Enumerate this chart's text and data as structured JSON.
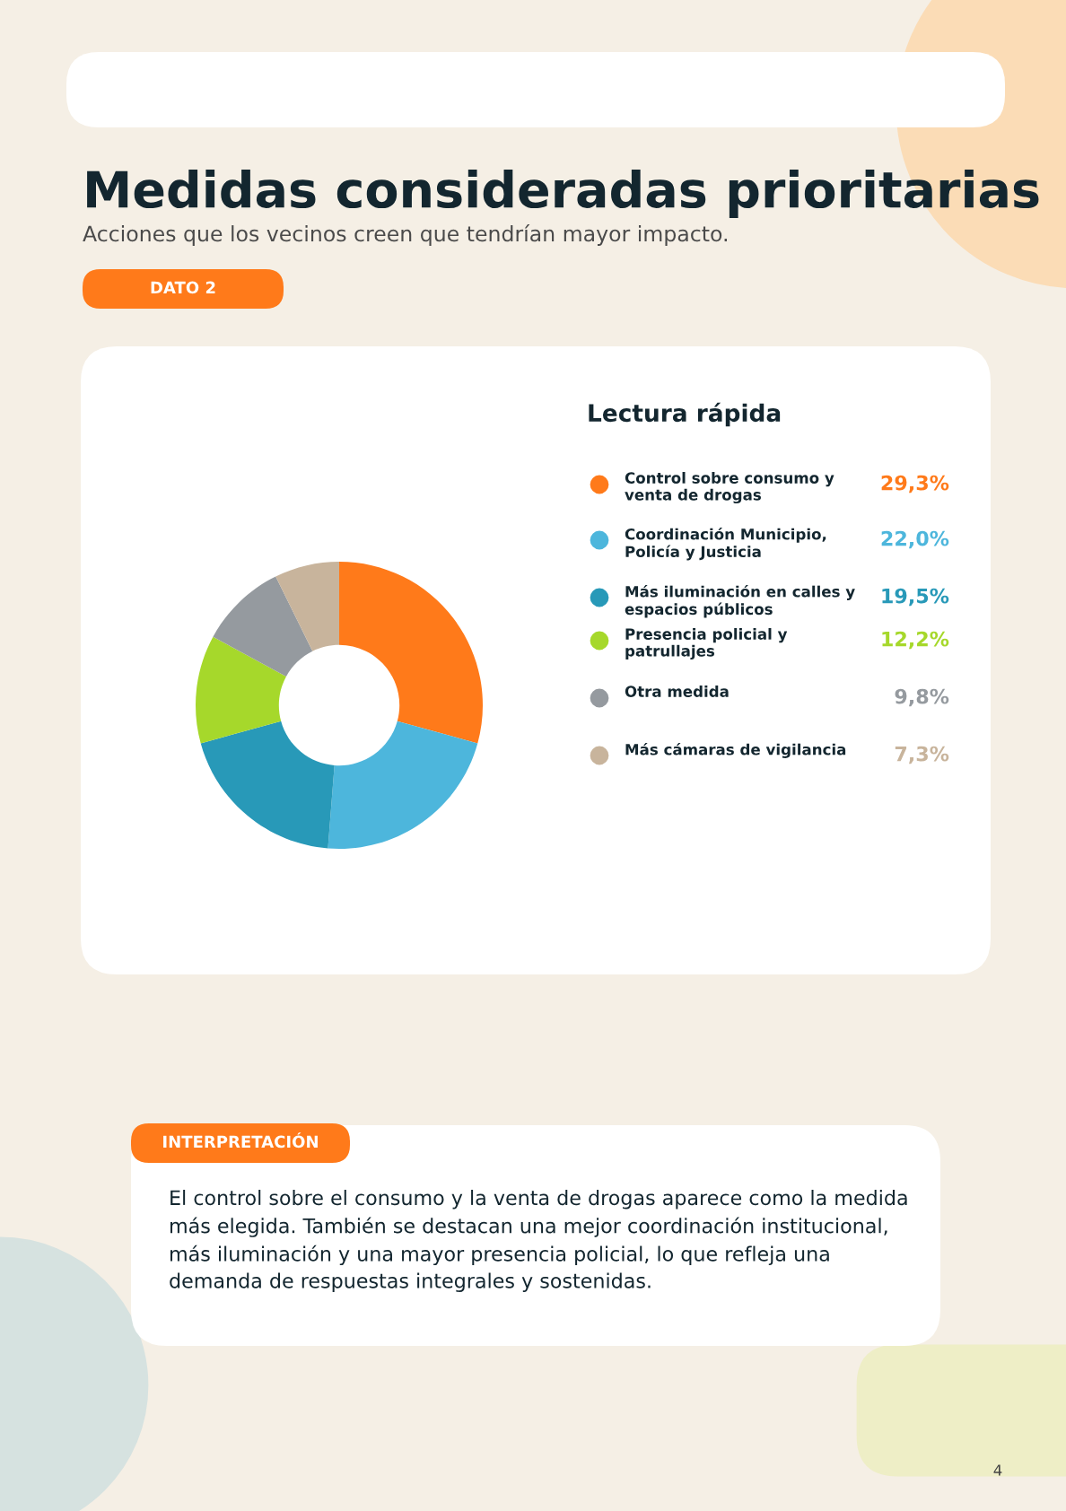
{
  "chart_data": {
    "type": "donut",
    "title": "Medidas consideradas prioritarias",
    "subtitle": "Acciones que los vecinos creen que tendrían mayor impacto.",
    "legend_title": "Lectura rápida",
    "legend": "right",
    "categories": [
      "Control sobre consumo y venta de drogas",
      "Coordinación Municipio, Policía y Justicia",
      "Más iluminación en calles y espacios públicos",
      "Presencia policial y patrullajes",
      "Otra medida",
      "Más cámaras de vigilancia"
    ],
    "values": [
      29.3,
      22.0,
      19.5,
      12.2,
      9.8,
      7.3
    ],
    "colors": [
      "#ff7a1a",
      "#4db6dc",
      "#2899b8",
      "#a6d82b",
      "#959a9f",
      "#c8b49c"
    ],
    "value_labels": [
      "29,3%",
      "22,0%",
      "19,5%",
      "12,2%",
      "9,8%",
      "7,3%"
    ],
    "annotations": [
      "DATO 2",
      "INTERPRETACIÓN",
      "El control sobre el consumo y la venta de drogas aparece como la medida más elegida. También se destacan una mejor coordinación institucional, más iluminación y una mayor presencia policial, lo que refleja una demanda de respuestas integrales y sostenidas.",
      "4"
    ]
  }
}
